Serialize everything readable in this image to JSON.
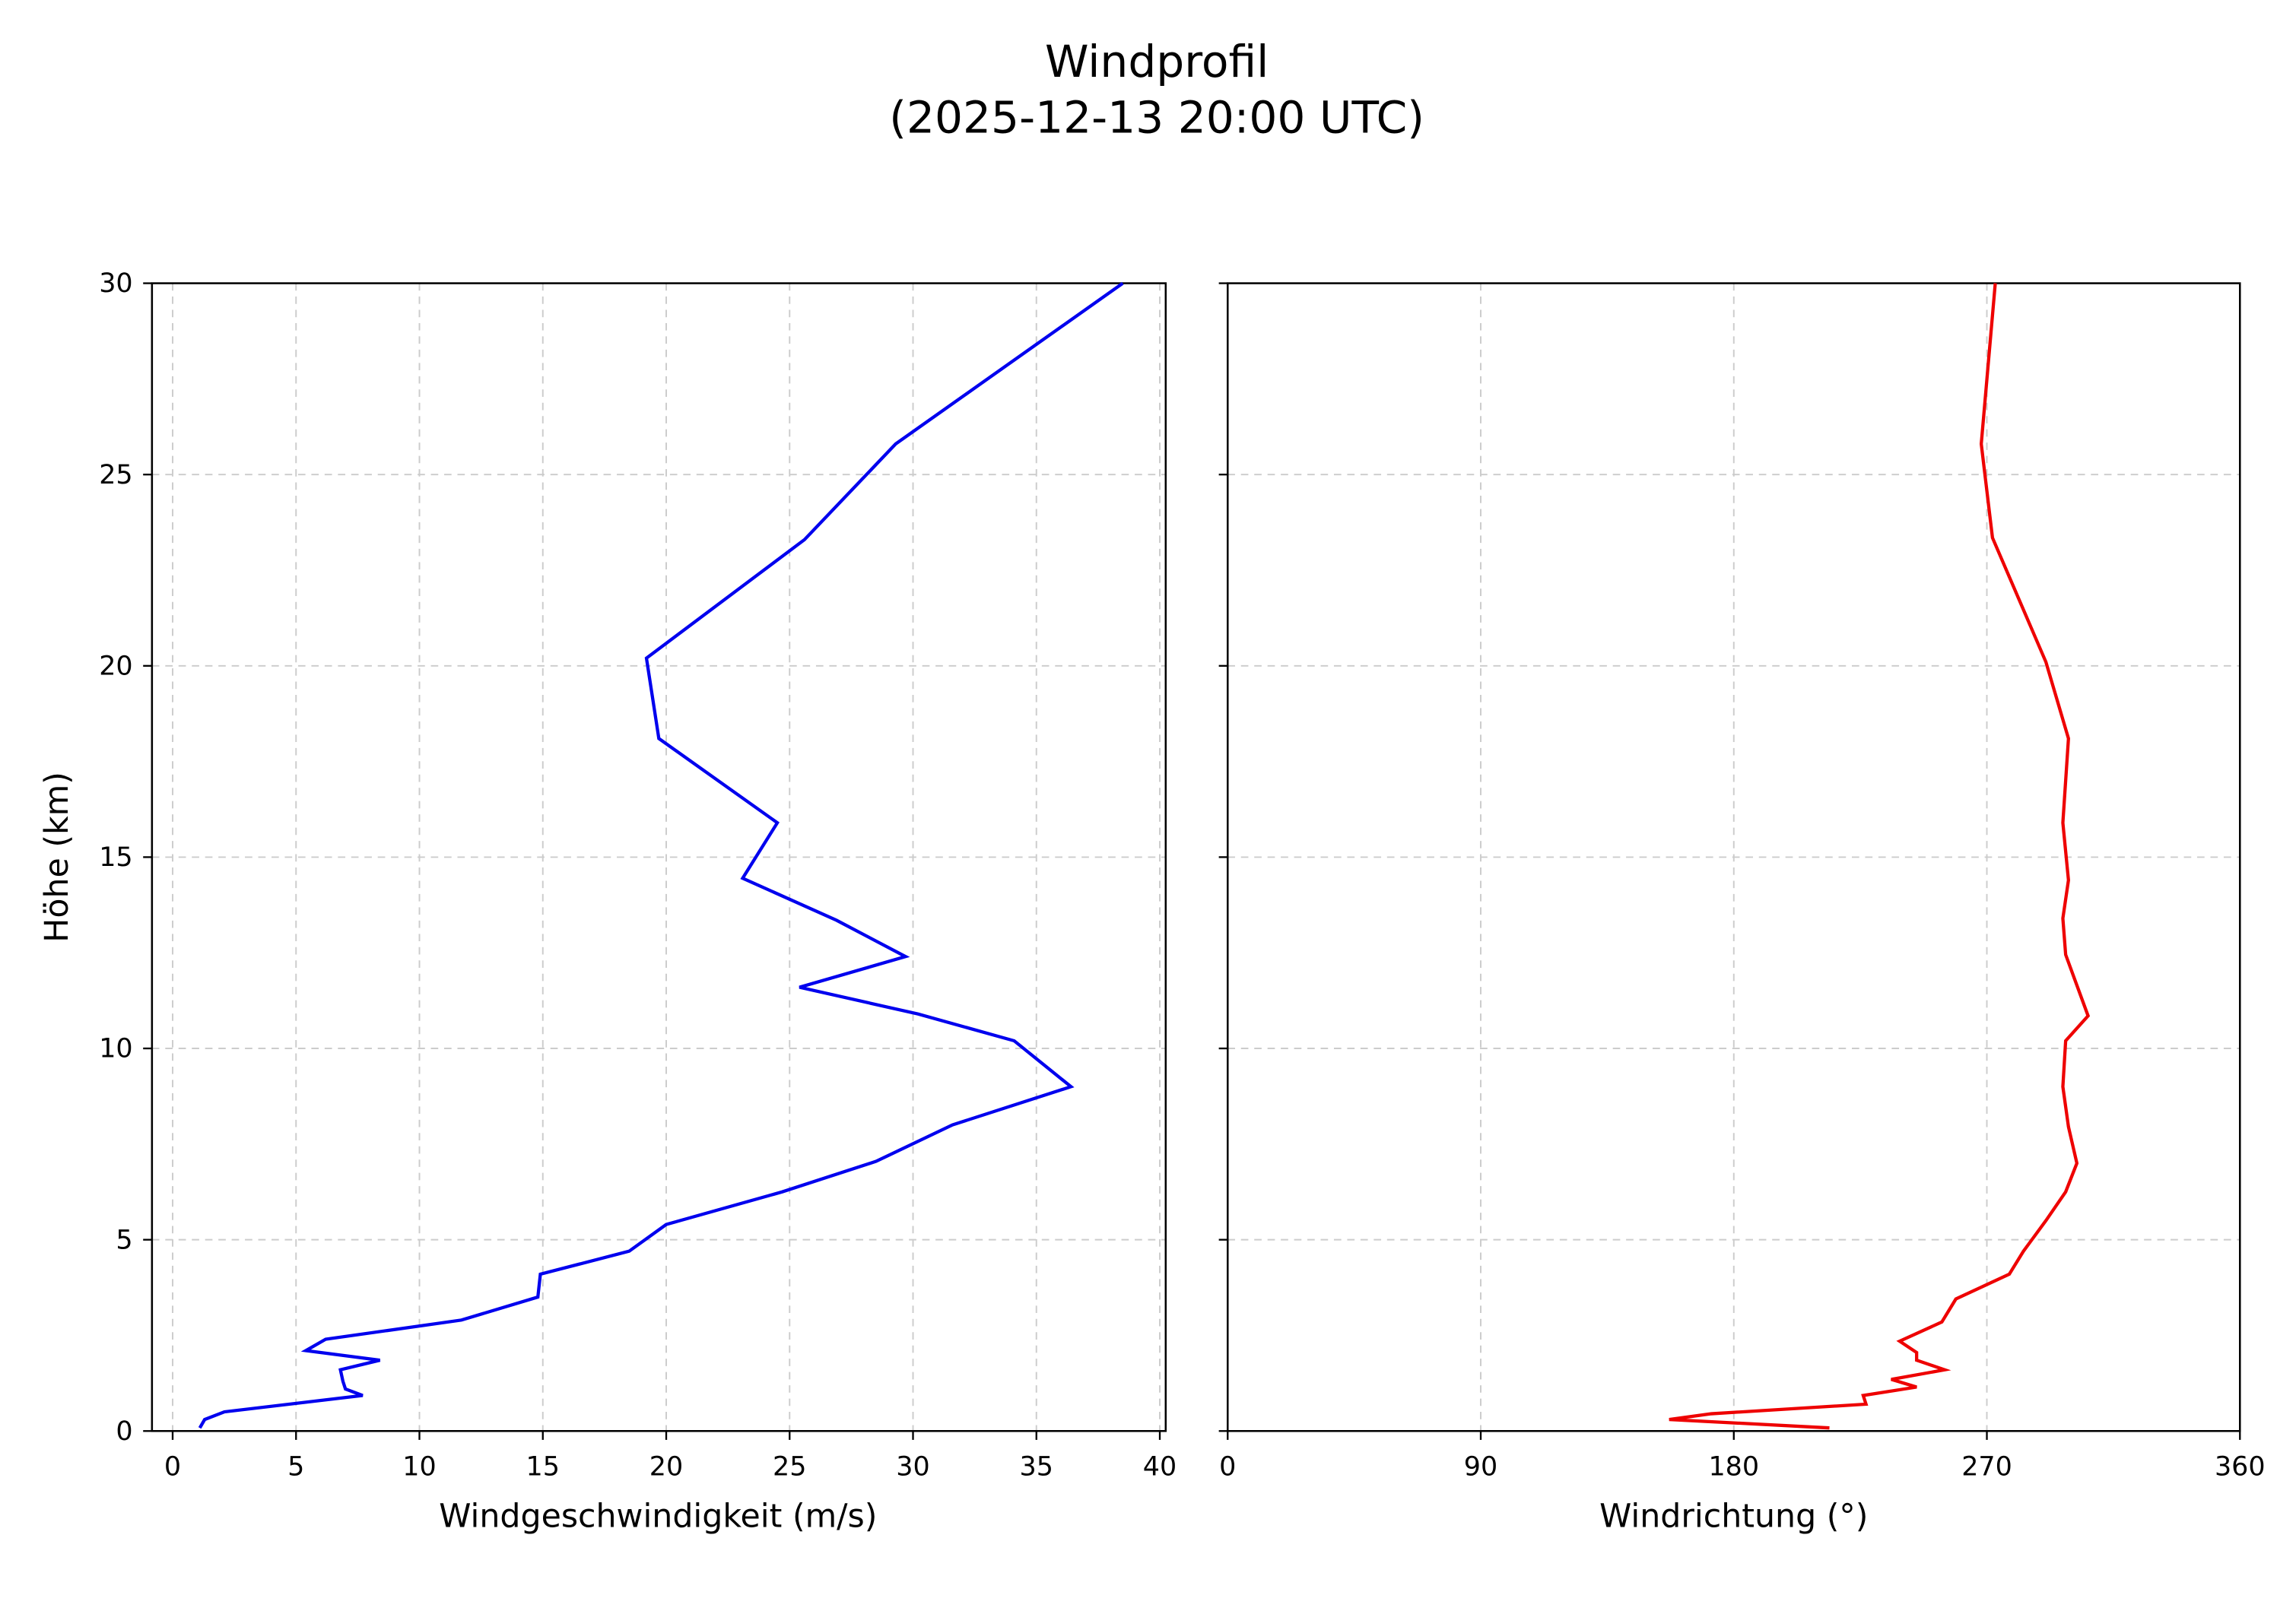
{
  "figure": {
    "title_line1": "Windprofil",
    "title_line2": "(2025-12-13 20:00 UTC)"
  },
  "chart_data": [
    {
      "type": "line",
      "title": "Windprofil (2025-12-13 20:00 UTC)",
      "xlabel": "Windgeschwindigkeit (m/s)",
      "ylabel": "Höhe (km)",
      "xlim": [
        -0.8,
        40.3
      ],
      "ylim": [
        0,
        30
      ],
      "xticks": [
        0,
        5,
        10,
        15,
        20,
        25,
        30,
        35,
        40
      ],
      "yticks": [
        0,
        5,
        10,
        15,
        20,
        25,
        30
      ],
      "grid": true,
      "grid_style": "dashed",
      "color": "#0000ee",
      "series": [
        {
          "name": "Windgeschwindigkeit",
          "x": [
            1.1,
            1.3,
            2.1,
            7.7,
            7.0,
            6.9,
            6.8,
            8.4,
            5.4,
            6.2,
            11.7,
            14.8,
            14.9,
            18.5,
            20.0,
            24.7,
            28.5,
            31.6,
            36.4,
            34.1,
            30.2,
            25.4,
            29.7,
            26.9,
            23.1,
            24.5,
            19.7,
            19.2,
            25.6,
            29.3,
            38.5
          ],
          "y": [
            0.08,
            0.3,
            0.5,
            0.93,
            1.1,
            1.3,
            1.6,
            1.85,
            2.1,
            2.4,
            2.9,
            3.5,
            4.1,
            4.7,
            5.4,
            6.25,
            7.05,
            8.0,
            9.0,
            10.2,
            10.9,
            11.6,
            12.4,
            13.35,
            14.45,
            15.9,
            18.1,
            20.2,
            23.3,
            25.8,
            30.0
          ]
        }
      ]
    },
    {
      "type": "line",
      "title": "",
      "xlabel": "Windrichtung (°)",
      "ylabel": "",
      "xlim": [
        0,
        360
      ],
      "ylim": [
        0,
        30
      ],
      "xticks": [
        0,
        90,
        180,
        270,
        360
      ],
      "yticks": [
        0,
        5,
        10,
        15,
        20,
        25,
        30
      ],
      "grid": true,
      "grid_style": "dashed",
      "color": "#ee0000",
      "series": [
        {
          "name": "Windrichtung",
          "x": [
            214,
            157,
            172,
            227,
            226,
            245,
            236,
            255,
            245,
            245,
            239,
            254,
            259,
            278,
            283,
            291,
            298,
            302,
            299,
            297,
            298,
            306,
            302,
            298,
            297,
            299,
            297,
            299,
            291,
            272,
            268,
            273
          ],
          "y": [
            0.08,
            0.3,
            0.45,
            0.7,
            0.93,
            1.15,
            1.35,
            1.6,
            1.85,
            2.05,
            2.35,
            2.85,
            3.45,
            4.1,
            4.7,
            5.5,
            6.25,
            7.0,
            7.95,
            9.0,
            10.2,
            10.85,
            11.65,
            12.45,
            13.4,
            14.4,
            15.9,
            18.1,
            20.1,
            23.35,
            25.8,
            30.0
          ]
        }
      ]
    }
  ],
  "left_panel": {
    "xlabel": "Windgeschwindigkeit (m/s)",
    "ylabel": "Höhe (km)",
    "xtick_labels": [
      "0",
      "5",
      "10",
      "15",
      "20",
      "25",
      "30",
      "35",
      "40"
    ],
    "ytick_labels": [
      "0",
      "5",
      "10",
      "15",
      "20",
      "25",
      "30"
    ]
  },
  "right_panel": {
    "xlabel": "Windrichtung (°)",
    "xtick_labels": [
      "0",
      "90",
      "180",
      "270",
      "360"
    ]
  }
}
